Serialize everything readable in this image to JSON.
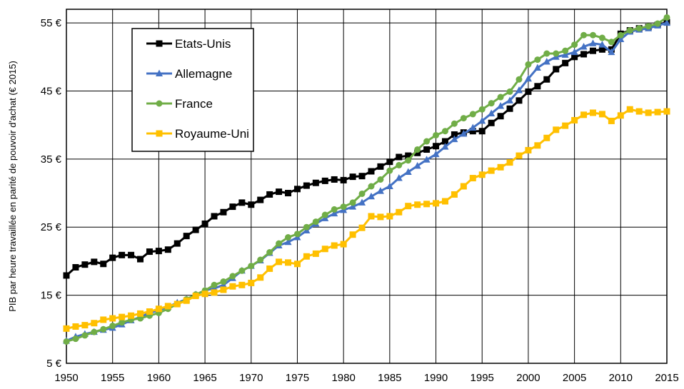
{
  "chart_data": {
    "type": "line",
    "title": "",
    "xlabel": "",
    "ylabel": "PIB par heure travaillée en parité de pouvoir d'achat (€ 2015)",
    "xlim": [
      1950,
      2015
    ],
    "ylim": [
      5,
      57
    ],
    "x_ticks": [
      1950,
      1955,
      1960,
      1965,
      1970,
      1975,
      1980,
      1985,
      1990,
      1995,
      2000,
      2005,
      2010,
      2015
    ],
    "y_ticks": [
      5,
      15,
      25,
      35,
      45,
      55
    ],
    "y_tick_labels": [
      "5 €",
      "15 €",
      "25 €",
      "35 €",
      "45 €",
      "55 €"
    ],
    "grid": true,
    "legend": "top-left",
    "x": [
      1950,
      1951,
      1952,
      1953,
      1954,
      1955,
      1956,
      1957,
      1958,
      1959,
      1960,
      1961,
      1962,
      1963,
      1964,
      1965,
      1966,
      1967,
      1968,
      1969,
      1970,
      1971,
      1972,
      1973,
      1974,
      1975,
      1976,
      1977,
      1978,
      1979,
      1980,
      1981,
      1982,
      1983,
      1984,
      1985,
      1986,
      1987,
      1988,
      1989,
      1990,
      1991,
      1992,
      1993,
      1994,
      1995,
      1996,
      1997,
      1998,
      1999,
      2000,
      2001,
      2002,
      2003,
      2004,
      2005,
      2006,
      2007,
      2008,
      2009,
      2010,
      2011,
      2012,
      2013,
      2014,
      2015
    ],
    "series": [
      {
        "name": "Etats-Unis",
        "color": "#000000",
        "marker": "square",
        "values": [
          17.9,
          19.1,
          19.5,
          19.9,
          19.6,
          20.5,
          20.9,
          20.9,
          20.3,
          21.4,
          21.5,
          21.7,
          22.6,
          23.7,
          24.6,
          25.5,
          26.6,
          27.2,
          28.0,
          28.6,
          28.3,
          29.0,
          29.8,
          30.2,
          30.0,
          30.6,
          31.1,
          31.5,
          31.8,
          32.0,
          31.9,
          32.4,
          32.5,
          33.2,
          33.9,
          34.6,
          35.3,
          35.5,
          35.9,
          36.4,
          36.9,
          37.6,
          38.6,
          38.9,
          39.1,
          39.1,
          40.3,
          41.3,
          42.4,
          43.6,
          44.9,
          45.7,
          46.7,
          48.2,
          49.1,
          50.0,
          50.4,
          50.9,
          51.1,
          51.1,
          53.4,
          53.9,
          54.2,
          54.4,
          54.7,
          55.1
        ]
      },
      {
        "name": "Allemagne",
        "color": "#4472c4",
        "marker": "triangle",
        "values": [
          8.3,
          8.9,
          9.3,
          9.6,
          9.9,
          10.2,
          10.7,
          11.3,
          11.8,
          12.4,
          12.8,
          13.3,
          13.9,
          14.4,
          15.1,
          15.7,
          16.0,
          16.5,
          17.5,
          18.6,
          19.3,
          20.1,
          21.2,
          22.3,
          22.8,
          23.5,
          24.5,
          25.5,
          26.3,
          27.0,
          27.5,
          28.0,
          28.6,
          29.5,
          30.3,
          31.0,
          32.2,
          33.1,
          34.0,
          34.9,
          35.7,
          36.8,
          37.9,
          38.7,
          39.6,
          40.6,
          41.7,
          42.8,
          43.6,
          45.1,
          46.8,
          48.4,
          49.3,
          50.0,
          50.3,
          50.7,
          51.5,
          52.0,
          51.8,
          50.7,
          52.6,
          53.7,
          54.0,
          54.2,
          54.6,
          55.0
        ]
      },
      {
        "name": "France",
        "color": "#70ad47",
        "marker": "circle",
        "values": [
          8.2,
          8.6,
          9.1,
          9.6,
          10.0,
          10.5,
          11.0,
          11.4,
          11.6,
          12.0,
          12.4,
          13.0,
          13.7,
          14.4,
          15.1,
          15.7,
          16.5,
          17.0,
          17.8,
          18.6,
          19.3,
          20.2,
          21.3,
          22.6,
          23.5,
          24.0,
          25.0,
          25.8,
          26.8,
          27.6,
          28.0,
          28.6,
          29.9,
          31.0,
          32.0,
          33.3,
          34.1,
          34.8,
          36.4,
          37.6,
          38.5,
          39.1,
          40.2,
          41.0,
          41.6,
          42.3,
          43.2,
          44.1,
          44.9,
          46.7,
          48.9,
          49.6,
          50.5,
          50.5,
          50.9,
          51.8,
          53.2,
          53.2,
          52.8,
          52.2,
          53.2,
          53.9,
          54.2,
          54.5,
          54.9,
          55.8
        ]
      },
      {
        "name": "Royaume-Uni",
        "color": "#ffc000",
        "marker": "square",
        "values": [
          10.1,
          10.4,
          10.6,
          10.9,
          11.4,
          11.6,
          11.8,
          12.0,
          12.3,
          12.6,
          13.0,
          13.4,
          13.7,
          14.2,
          14.9,
          15.2,
          15.4,
          15.8,
          16.3,
          16.5,
          16.8,
          17.6,
          18.9,
          19.9,
          19.8,
          19.6,
          20.7,
          21.1,
          21.8,
          22.3,
          22.5,
          23.9,
          24.9,
          26.6,
          26.5,
          26.6,
          27.2,
          28.1,
          28.3,
          28.4,
          28.5,
          28.8,
          29.8,
          31.0,
          32.2,
          32.7,
          33.3,
          33.8,
          34.5,
          35.5,
          36.3,
          37.0,
          38.1,
          39.3,
          39.9,
          40.7,
          41.5,
          41.8,
          41.6,
          40.6,
          41.4,
          42.3,
          42.0,
          41.8,
          41.9,
          42.0
        ]
      }
    ]
  }
}
